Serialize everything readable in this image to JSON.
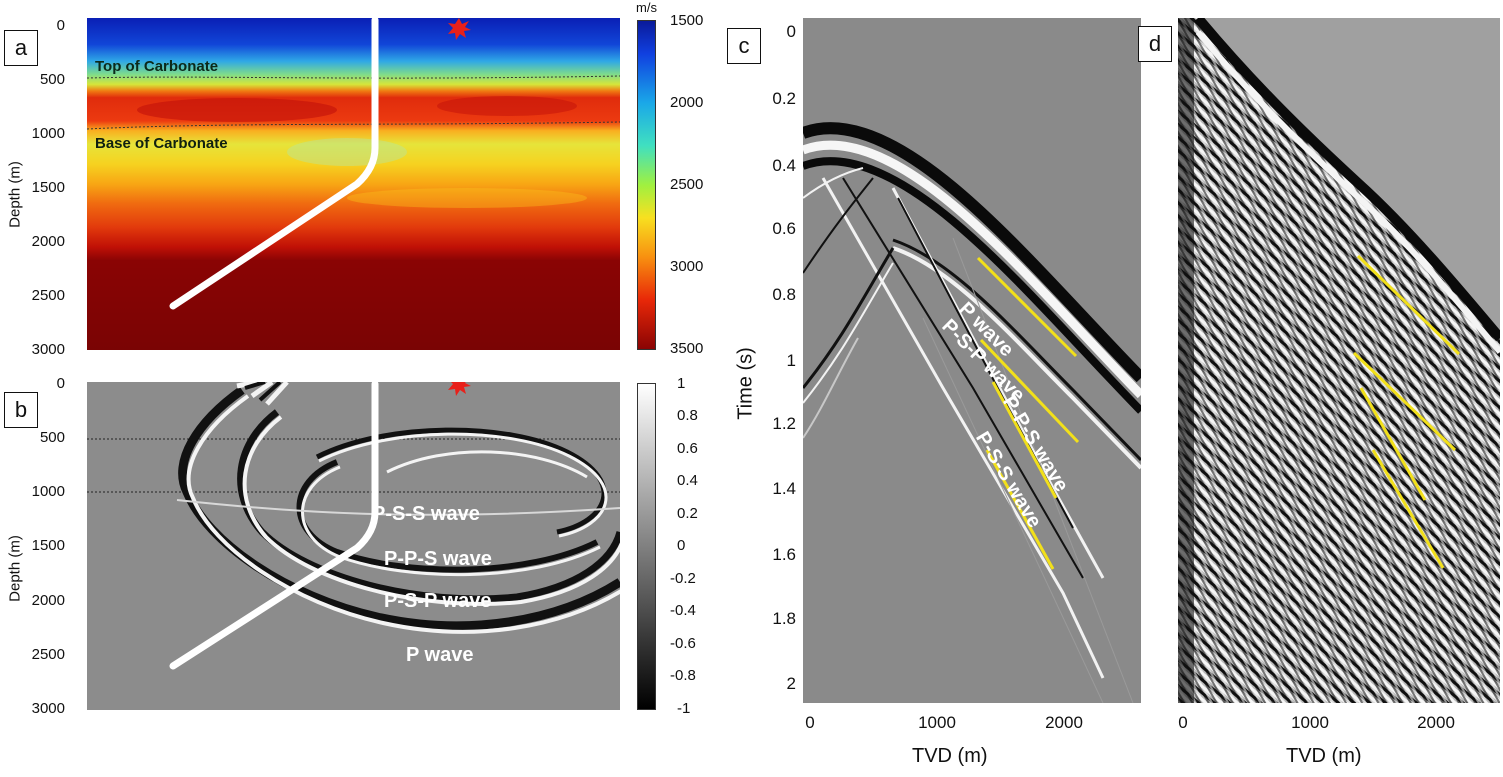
{
  "panels": {
    "a": {
      "label": "a",
      "ylabel": "Depth (m)",
      "yticks": [
        "0",
        "500",
        "1000",
        "1500",
        "2000",
        "2500",
        "3000"
      ],
      "horizon_top": "Top of Carbonate",
      "horizon_base": "Base of Carbonate",
      "colorbar_unit": "m/s",
      "colorbar_ticks": [
        "1500",
        "2000",
        "2500",
        "3000",
        "3500"
      ]
    },
    "b": {
      "label": "b",
      "ylabel": "Depth (m)",
      "yticks": [
        "0",
        "500",
        "1000",
        "1500",
        "2000",
        "2500",
        "3000"
      ],
      "wave_labels": [
        "P-S-S wave",
        "P-P-S wave",
        "P-S-P wave",
        "P wave"
      ],
      "colorbar_ticks": [
        "1",
        "0.8",
        "0.6",
        "0.4",
        "0.2",
        "0",
        "-0.2",
        "-0.4",
        "-0.6",
        "-0.8",
        "-1"
      ]
    },
    "c": {
      "label": "c",
      "ylabel": "Time (s)",
      "xlabel": "TVD (m)",
      "yticks": [
        "0",
        "0.2",
        "0.4",
        "0.6",
        "0.8",
        "1",
        "1.2",
        "1.4",
        "1.6",
        "1.8",
        "2"
      ],
      "xticks": [
        "0",
        "1000",
        "2000"
      ],
      "wave_labels": [
        "P wave",
        "P-S-P wave",
        "P-P-S wave",
        "P-S-S wave"
      ]
    },
    "d": {
      "label": "d",
      "xlabel": "TVD (m)",
      "xticks": [
        "0",
        "1000",
        "2000"
      ]
    }
  },
  "colors": {
    "annotation_yellow": "#f2e01a",
    "source_star": "#e8201a",
    "well_path": "#ffffff",
    "seismic_gray": "#8c8c8c"
  }
}
